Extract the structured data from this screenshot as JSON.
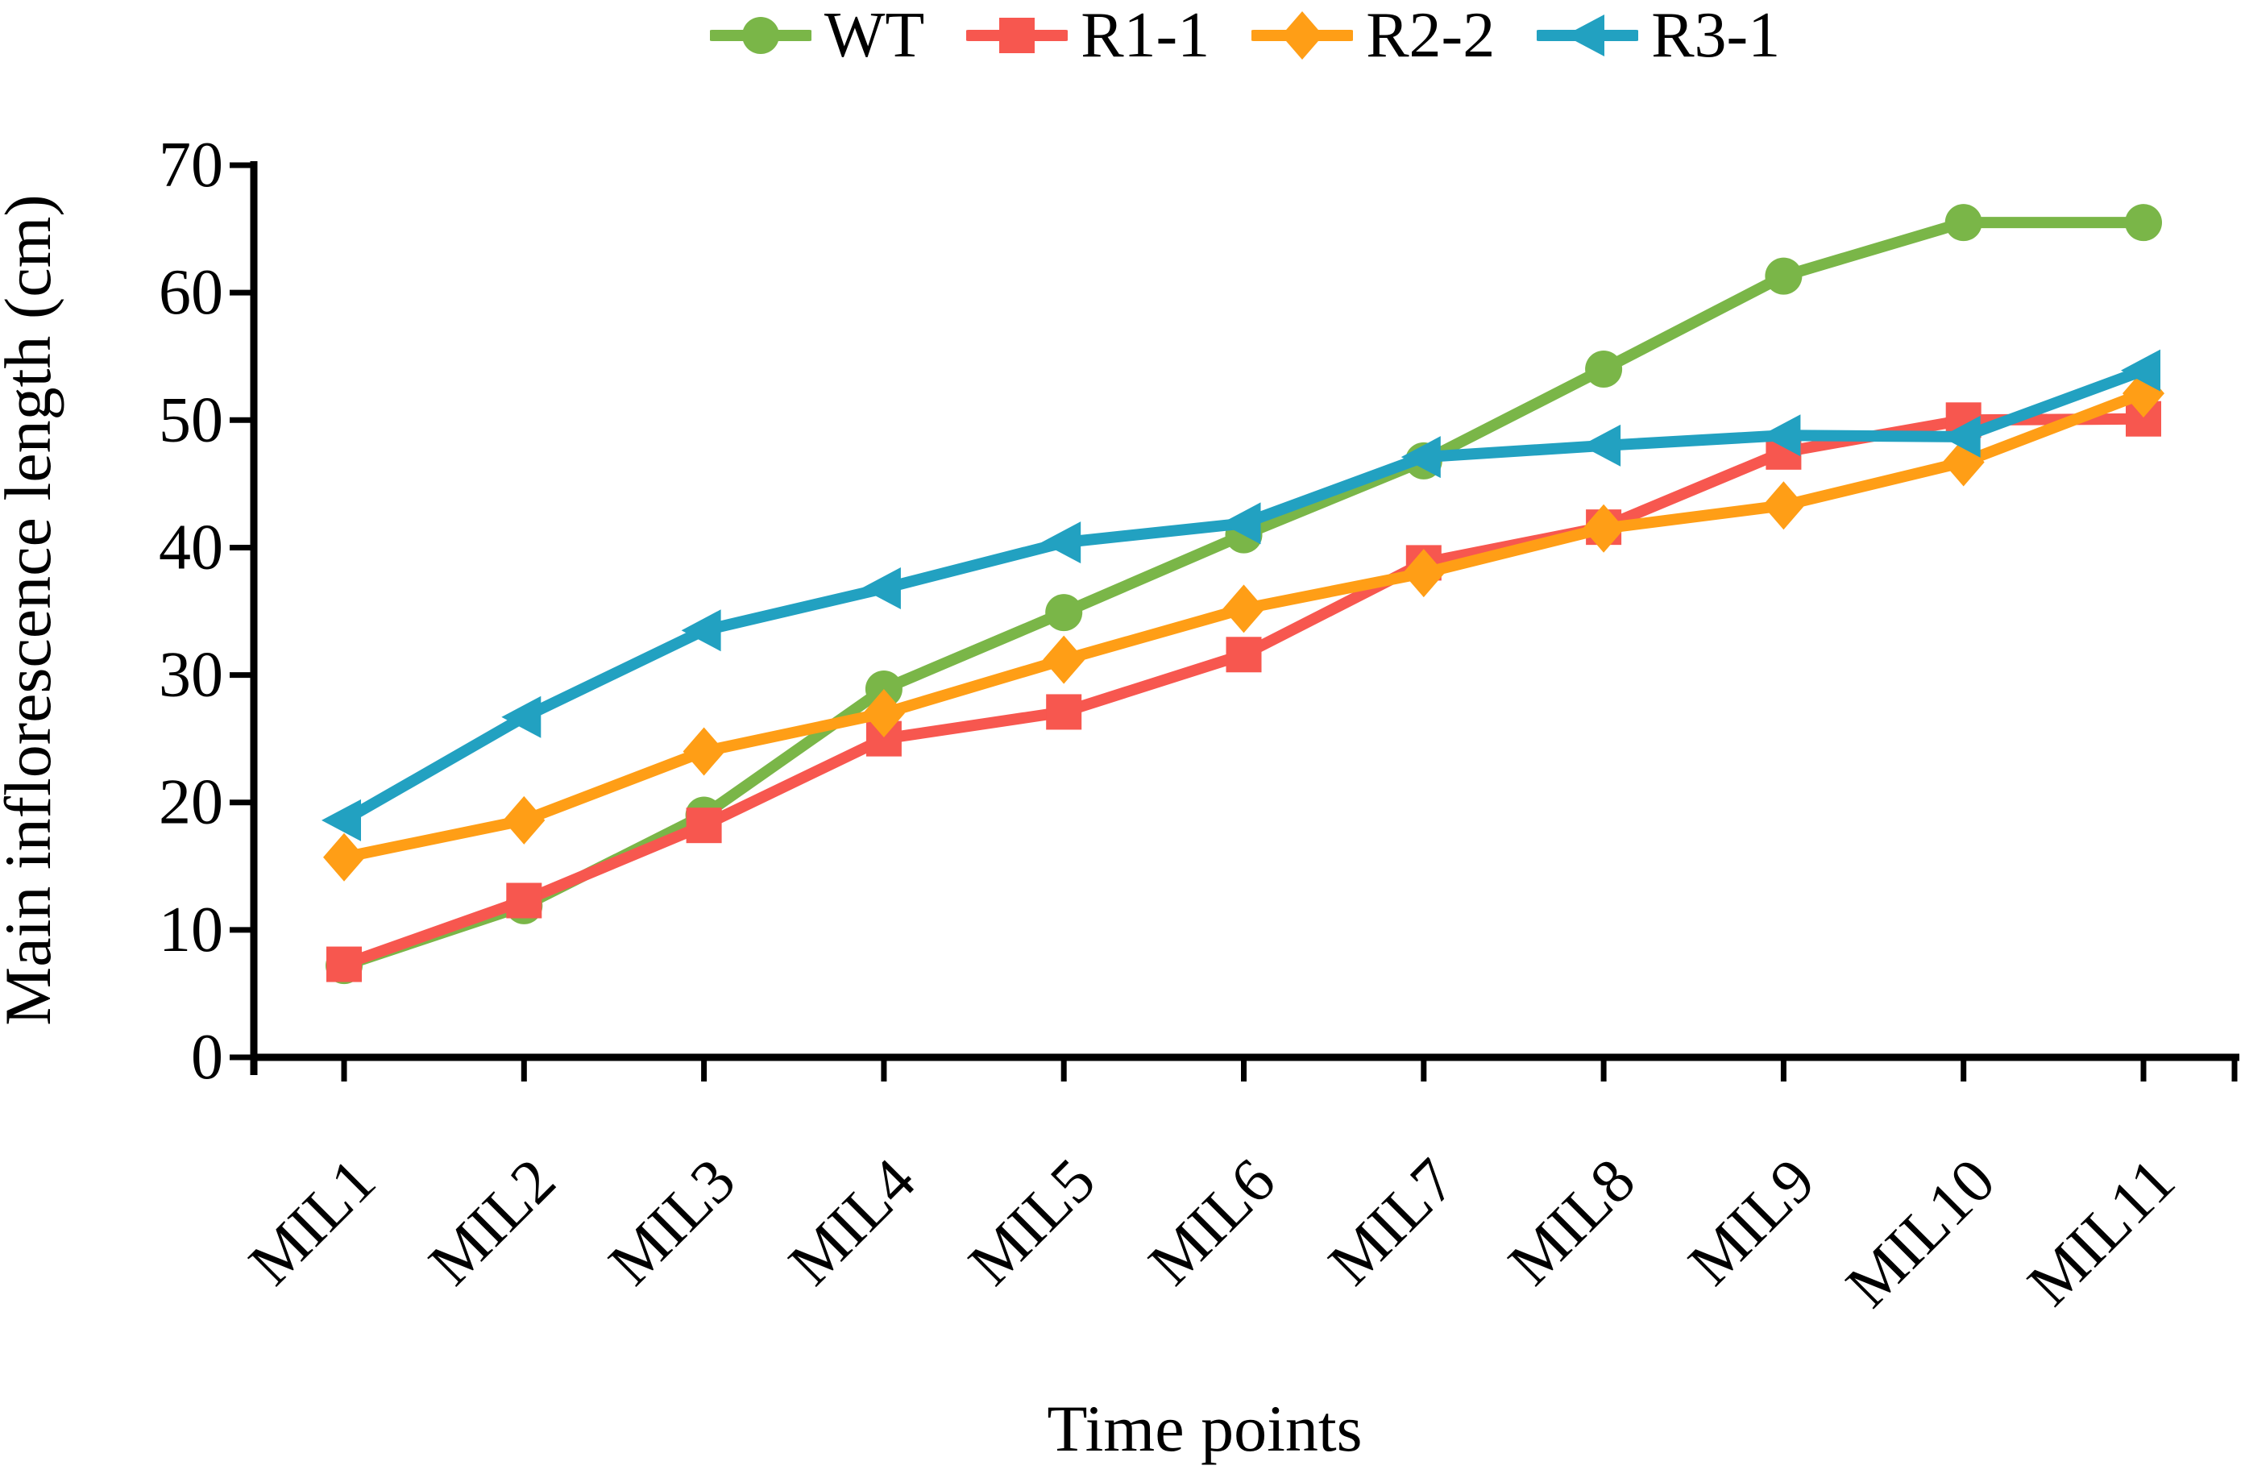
{
  "chart_data": {
    "type": "line",
    "title": "",
    "xlabel": "Time points",
    "ylabel": "Main inflorescence length (cm)",
    "categories": [
      "MIL1",
      "MIL2",
      "MIL3",
      "MIL4",
      "MIL5",
      "MIL6",
      "MIL7",
      "MIL8",
      "MIL9",
      "MIL10",
      "MIL11"
    ],
    "ylim": [
      0,
      70
    ],
    "yticks": [
      0,
      10,
      20,
      30,
      40,
      50,
      60,
      70
    ],
    "grid": false,
    "legend_position": "top-center",
    "axis_color": "#000000",
    "series": [
      {
        "name": "WT",
        "color": "#7AB648",
        "marker": "circle",
        "values": [
          7.2,
          11.9,
          19.0,
          28.9,
          34.9,
          41.0,
          46.8,
          54.0,
          61.3,
          65.5,
          65.5
        ]
      },
      {
        "name": "R1-1",
        "color": "#F7574F",
        "marker": "square",
        "values": [
          7.3,
          12.3,
          18.2,
          25.0,
          27.1,
          31.6,
          38.8,
          41.6,
          47.5,
          50.0,
          50.1
        ]
      },
      {
        "name": "R2-2",
        "color": "#FF9E16",
        "marker": "diamond",
        "values": [
          15.7,
          18.6,
          24.0,
          27.0,
          31.2,
          35.2,
          38.0,
          41.5,
          43.3,
          46.7,
          52.1
        ]
      },
      {
        "name": "R3-1",
        "color": "#22A1C1",
        "marker": "triangle-left",
        "values": [
          18.6,
          26.7,
          33.5,
          36.8,
          40.4,
          41.9,
          47.1,
          48.0,
          48.8,
          48.7,
          53.9
        ]
      }
    ]
  }
}
